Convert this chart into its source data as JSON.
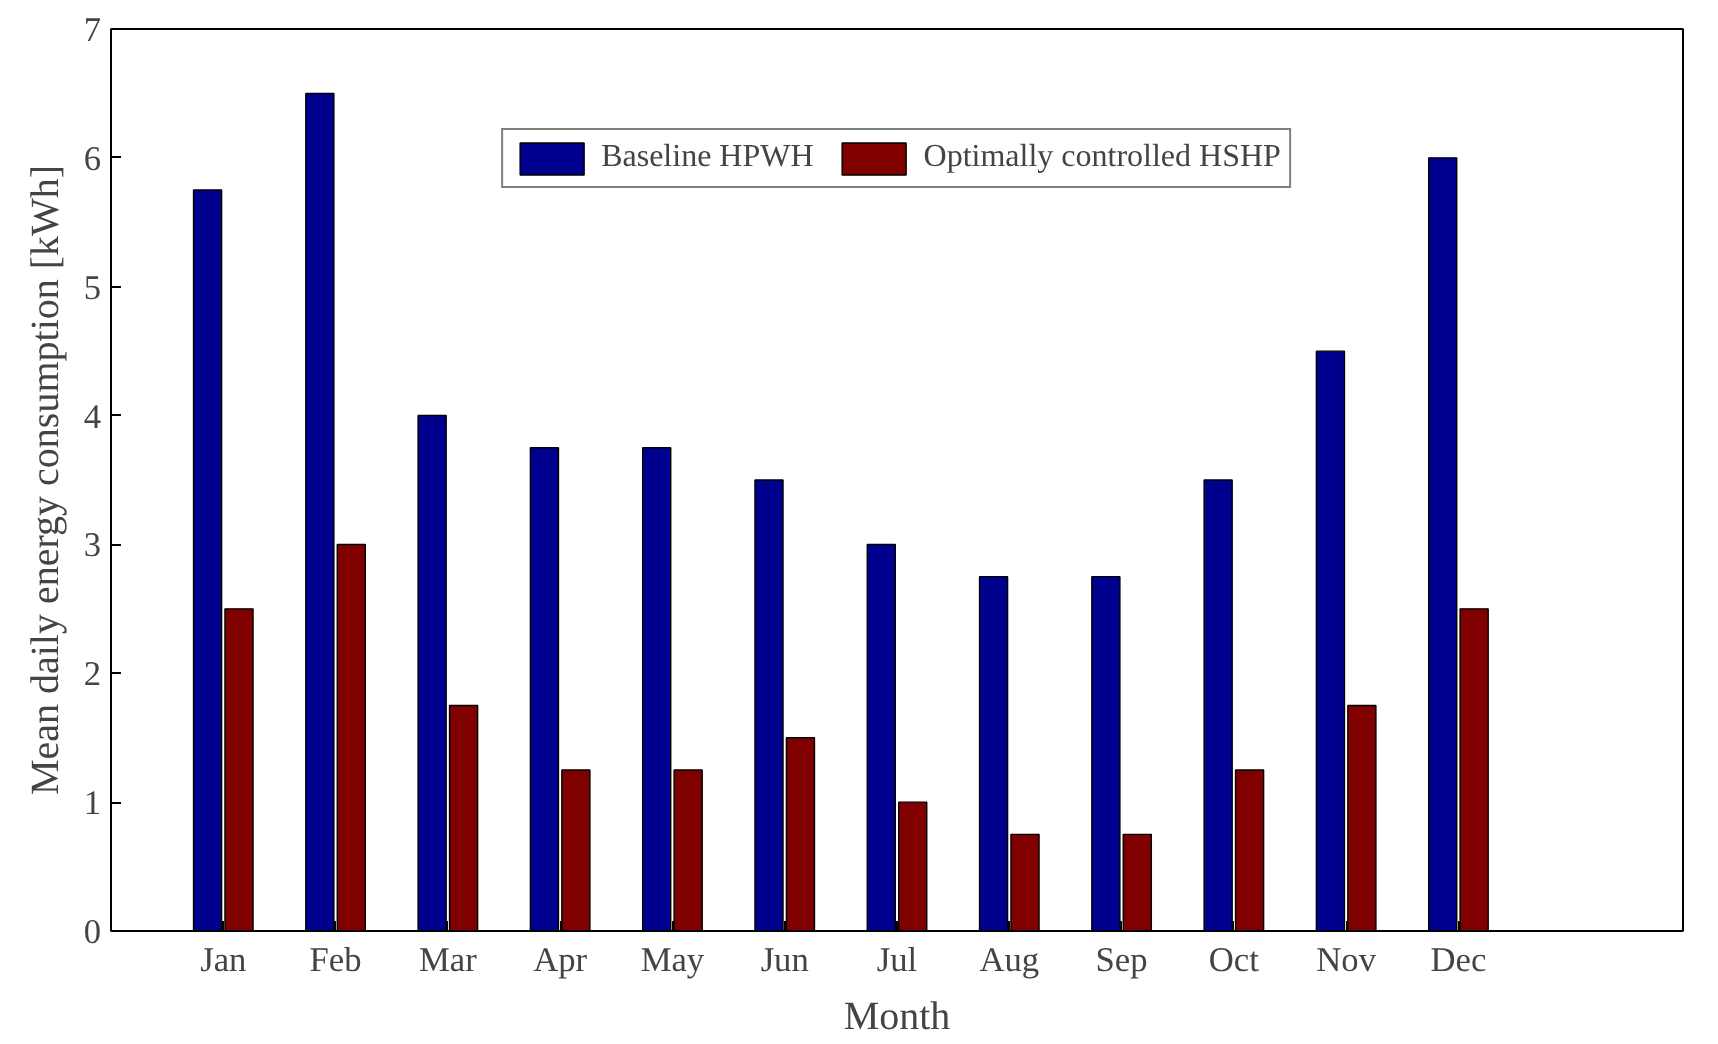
{
  "chart_data": {
    "type": "bar",
    "xlabel": "Month",
    "ylabel": "Mean daily energy consumption [kWh]",
    "categories": [
      "Jan",
      "Feb",
      "Mar",
      "Apr",
      "May",
      "Jun",
      "Jul",
      "Aug",
      "Sep",
      "Oct",
      "Nov",
      "Dec"
    ],
    "series": [
      {
        "name": "Baseline HPWH",
        "color": "#00008f",
        "values": [
          5.75,
          6.5,
          4,
          3.75,
          3.75,
          3.5,
          3,
          2.75,
          2.75,
          3.5,
          4.5,
          6
        ]
      },
      {
        "name": "Optimally controlled HSHP",
        "color": "#800000",
        "values": [
          2.5,
          3,
          1.75,
          1.25,
          1.25,
          1.5,
          1,
          0.75,
          0.75,
          1.25,
          1.75,
          2.5
        ]
      }
    ],
    "ylim": [
      0,
      7
    ],
    "yticks": [
      0,
      1,
      2,
      3,
      4,
      5,
      6,
      7
    ],
    "grid": false,
    "legend": "top"
  }
}
